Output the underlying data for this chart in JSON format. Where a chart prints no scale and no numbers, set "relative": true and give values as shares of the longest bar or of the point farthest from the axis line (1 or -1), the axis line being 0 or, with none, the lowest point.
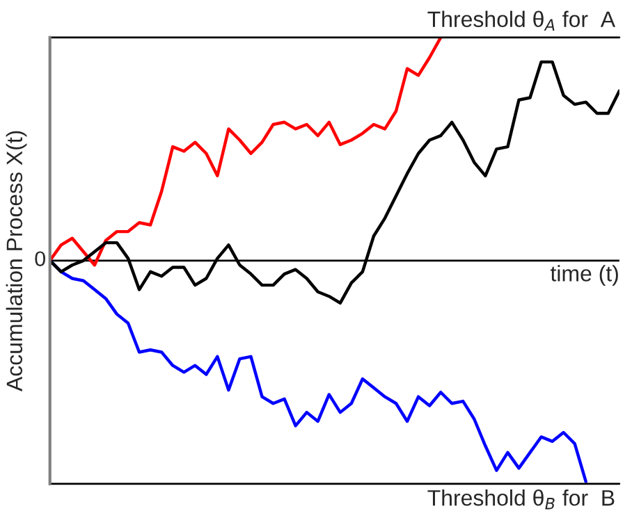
{
  "chart_data": {
    "type": "line",
    "relative": true,
    "ylabel": "Accumulation Process X(t)",
    "xlabel": "time (t)",
    "categories": [
      null,
      null,
      null,
      null,
      null,
      null,
      null,
      null,
      null,
      null,
      null,
      null,
      null,
      null,
      null,
      null,
      null,
      null,
      null,
      null,
      null,
      null,
      null,
      null,
      null,
      null,
      null,
      null,
      null,
      null,
      null,
      null,
      null,
      null,
      null,
      null,
      null,
      null,
      null,
      null,
      null,
      null,
      null,
      null,
      null,
      null,
      null,
      null,
      null,
      null,
      null,
      null
    ],
    "series": [
      {
        "color": "#ff0000",
        "values": [
          0,
          0.07,
          0.1,
          0.04,
          -0.02,
          0.09,
          0.13,
          0.13,
          0.17,
          0.16,
          0.31,
          0.51,
          0.49,
          0.53,
          0.48,
          0.38,
          0.59,
          0.54,
          0.48,
          0.53,
          0.61,
          0.62,
          0.59,
          0.61,
          0.56,
          0.62,
          0.52,
          0.54,
          0.57,
          0.61,
          0.59,
          0.67,
          0.86,
          0.83,
          0.91,
          1.0,
          null,
          null,
          null,
          null,
          null,
          null,
          null,
          null,
          null,
          null,
          null,
          null,
          null,
          null,
          null,
          null
        ]
      },
      {
        "color": "#0000ff",
        "values": [
          0,
          -0.05,
          -0.08,
          -0.09,
          -0.13,
          -0.17,
          -0.24,
          -0.28,
          -0.41,
          -0.4,
          -0.41,
          -0.47,
          -0.5,
          -0.47,
          -0.51,
          -0.43,
          -0.58,
          -0.44,
          -0.43,
          -0.61,
          -0.64,
          -0.62,
          -0.74,
          -0.68,
          -0.72,
          -0.6,
          -0.68,
          -0.64,
          -0.53,
          -0.57,
          -0.61,
          -0.64,
          -0.72,
          -0.61,
          -0.65,
          -0.59,
          -0.64,
          -0.63,
          -0.71,
          -0.83,
          -0.94,
          -0.86,
          -0.93,
          -0.86,
          -0.79,
          -0.81,
          -0.77,
          -0.82,
          -0.99,
          null,
          null,
          null
        ]
      },
      {
        "color": "#000000",
        "values": [
          0,
          -0.05,
          -0.02,
          0,
          0.04,
          0.08,
          0.08,
          0.01,
          -0.13,
          -0.05,
          -0.07,
          -0.03,
          -0.03,
          -0.11,
          -0.08,
          0.01,
          0.07,
          -0.02,
          -0.06,
          -0.11,
          -0.11,
          -0.06,
          -0.04,
          -0.08,
          -0.14,
          -0.16,
          -0.19,
          -0.1,
          -0.05,
          0.11,
          0.19,
          0.29,
          0.39,
          0.48,
          0.54,
          0.56,
          0.62,
          0.54,
          0.44,
          0.38,
          0.5,
          0.51,
          0.72,
          0.73,
          0.89,
          0.89,
          0.74,
          0.7,
          0.71,
          0.66,
          0.66,
          0.76
        ]
      }
    ],
    "ref_lines": [
      {
        "axis": "y",
        "value": 1,
        "label": "Threshold θ$_{A}$ for  A",
        "color": "#000000"
      },
      {
        "axis": "y",
        "value": -1,
        "label": "Threshold θ$_{B}$ for  B",
        "color": "#000000"
      }
    ],
    "annotations": [
      "0"
    ],
    "legend": false
  }
}
